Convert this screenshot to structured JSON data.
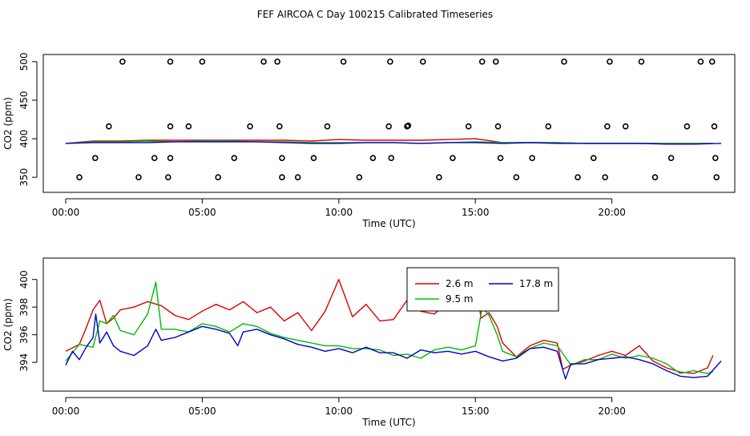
{
  "figure": {
    "title": "FEF AIRCOA C  Day 100215  Calibrated Timeseries"
  },
  "chart_data": [
    {
      "type": "line",
      "xlabel": "Time (UTC)",
      "ylabel": "CO2 (ppm)",
      "xlim": [
        0,
        24
      ],
      "ylim": [
        345,
        503
      ],
      "x_ticks": [
        0,
        5,
        10,
        15,
        20
      ],
      "x_tick_labels": [
        "00:00",
        "05:00",
        "10:00",
        "15:00",
        "20:00"
      ],
      "y_ticks": [
        350,
        400,
        450,
        500
      ],
      "y_tick_labels": [
        "350",
        "400",
        "450",
        "500"
      ],
      "grid": false,
      "legend": "none",
      "series": [
        {
          "color": "#dd0000",
          "x": [
            0,
            1,
            2,
            3,
            4,
            5,
            6,
            7,
            8,
            9,
            10,
            11,
            12,
            13,
            14,
            15,
            16,
            17,
            18,
            19,
            20,
            21,
            22,
            23,
            23.7
          ],
          "values": [
            394,
            397,
            397,
            398,
            398,
            398,
            398,
            398,
            398,
            397,
            399,
            398,
            398,
            398,
            399,
            400,
            395,
            395,
            395,
            394,
            394,
            394,
            394,
            394,
            394
          ]
        },
        {
          "color": "#00bb00",
          "x": [
            0,
            1,
            2,
            3,
            4,
            5,
            6,
            7,
            8,
            9,
            10,
            11,
            12,
            13,
            14,
            15,
            16,
            17,
            18,
            19,
            20,
            21,
            22,
            23,
            23.7
          ],
          "values": [
            394,
            396,
            396,
            397,
            396,
            397,
            397,
            396,
            396,
            395,
            395,
            395,
            395,
            394,
            395,
            396,
            395,
            395,
            395,
            394,
            394,
            394,
            394,
            394,
            394
          ]
        },
        {
          "color": "#0000cc",
          "x": [
            0,
            1,
            2,
            3,
            4,
            5,
            6,
            7,
            8,
            9,
            10,
            11,
            12,
            13,
            14,
            15,
            16,
            17,
            18,
            19,
            20,
            21,
            22,
            23,
            24
          ],
          "values": [
            394,
            395,
            395,
            395,
            396,
            396,
            396,
            396,
            395,
            394,
            394,
            395,
            395,
            394,
            395,
            395,
            394,
            395,
            394,
            394,
            394,
            394,
            393,
            393,
            394
          ]
        }
      ],
      "points": {
        "x": [
          0.5,
          1.08,
          1.58,
          2.08,
          2.67,
          3.25,
          3.75,
          3.83,
          3.83,
          3.83,
          4.5,
          5.0,
          5.58,
          6.17,
          6.75,
          7.25,
          7.75,
          7.83,
          7.92,
          7.92,
          8.5,
          9.08,
          9.58,
          10.17,
          10.75,
          11.25,
          11.83,
          11.88,
          11.92,
          12.5,
          12.54,
          13.08,
          13.67,
          14.17,
          14.75,
          15.25,
          15.75,
          15.83,
          15.92,
          16.5,
          17.08,
          17.67,
          18.25,
          18.75,
          19.33,
          19.75,
          19.83,
          19.92,
          20.5,
          21.08,
          21.58,
          22.17,
          22.75,
          23.25,
          23.67,
          23.75,
          23.79,
          23.83
        ],
        "values": [
          350,
          375,
          416,
          500,
          350,
          375,
          350,
          375,
          416,
          500,
          416,
          500,
          350,
          375,
          416,
          500,
          500,
          416,
          375,
          350,
          350,
          375,
          416,
          500,
          350,
          375,
          416,
          500,
          375,
          416,
          417,
          500,
          350,
          375,
          416,
          500,
          500,
          416,
          375,
          350,
          375,
          416,
          500,
          350,
          375,
          350,
          416,
          500,
          416,
          500,
          350,
          375,
          416,
          500,
          500,
          416,
          375,
          350
        ]
      }
    },
    {
      "type": "line",
      "xlabel": "Time (UTC)",
      "ylabel": "CO2 (ppm)",
      "xlim": [
        0,
        24
      ],
      "ylim": [
        392.5,
        401.2
      ],
      "x_ticks": [
        0,
        5,
        10,
        15,
        20
      ],
      "x_tick_labels": [
        "00:00",
        "05:00",
        "10:00",
        "15:00",
        "20:00"
      ],
      "y_ticks": [
        394,
        396,
        398,
        400
      ],
      "y_tick_labels": [
        "394",
        "396",
        "398",
        "400"
      ],
      "grid": false,
      "legend": "top-center",
      "series": [
        {
          "name": "2.6 m",
          "color": "#dd0000",
          "x": [
            0,
            0.5,
            0.75,
            1,
            1.25,
            1.5,
            1.75,
            2,
            2.5,
            3,
            3.5,
            4,
            4.5,
            5,
            5.5,
            6,
            6.5,
            7,
            7.5,
            8,
            8.5,
            9,
            9.5,
            10,
            10.5,
            11,
            11.5,
            12,
            12.5,
            13,
            13.5,
            14,
            14.3,
            14.6,
            14.8,
            15,
            15.2,
            15.5,
            15.8,
            16,
            16.5,
            17,
            17.5,
            18,
            18.2,
            18.5,
            19,
            19.5,
            20,
            20.5,
            21,
            21.5,
            22,
            22.5,
            23,
            23.5,
            23.7
          ],
          "values": [
            394.8,
            395.3,
            396.5,
            397.8,
            398.5,
            396.8,
            397.2,
            397.8,
            398,
            398.4,
            398.1,
            397.4,
            397.1,
            397.7,
            398.2,
            397.8,
            398.4,
            397.6,
            398,
            397,
            397.6,
            396.3,
            397.7,
            400,
            397.3,
            398.2,
            397,
            397.1,
            398.5,
            397.7,
            397.5,
            398.4,
            399.5,
            400.3,
            399.6,
            400.8,
            397.2,
            397.6,
            396.6,
            395.4,
            394.4,
            395.2,
            395.6,
            395.4,
            393.5,
            393.8,
            394.1,
            394.5,
            394.8,
            394.5,
            395.2,
            394.1,
            393.6,
            393.3,
            393.2,
            393.6,
            394.5
          ]
        },
        {
          "name": "9.5 m",
          "color": "#00bb00",
          "x": [
            0,
            0.5,
            1,
            1.25,
            1.5,
            1.75,
            2,
            2.5,
            3,
            3.3,
            3.5,
            4,
            4.5,
            5,
            5.5,
            6,
            6.5,
            7,
            7.5,
            8,
            8.5,
            9,
            9.5,
            10,
            10.5,
            11,
            11.5,
            12,
            12.5,
            13,
            13.5,
            14,
            14.5,
            15,
            15.25,
            15.5,
            15.8,
            16,
            16.5,
            17,
            17.5,
            18,
            18.5,
            19,
            19.5,
            20,
            20.5,
            21,
            21.5,
            22,
            22.5,
            23,
            23.5,
            23.7
          ],
          "values": [
            394.1,
            395.3,
            395.1,
            397,
            396.8,
            397.4,
            396.3,
            396,
            397.5,
            399.8,
            396.4,
            396.4,
            396.2,
            396.8,
            396.6,
            396.2,
            396.8,
            396.6,
            396.1,
            395.8,
            395.6,
            395.4,
            395.2,
            395.2,
            395,
            395,
            394.9,
            394.5,
            394.6,
            394.3,
            394.9,
            395.1,
            394.9,
            395.2,
            398,
            397.4,
            396,
            394.8,
            394.4,
            395,
            395.4,
            395.2,
            393.8,
            394.2,
            394.2,
            394.6,
            394.3,
            394.5,
            394.3,
            393.9,
            393.2,
            393.4,
            393.2,
            393.3
          ]
        },
        {
          "name": "17.8 m",
          "color": "#0000cc",
          "x": [
            0,
            0.25,
            0.5,
            0.75,
            1,
            1.1,
            1.25,
            1.5,
            1.75,
            2,
            2.5,
            3,
            3.3,
            3.5,
            4,
            4.5,
            5,
            5.5,
            6,
            6.3,
            6.5,
            7,
            7.5,
            8,
            8.5,
            9,
            9.5,
            10,
            10.5,
            11,
            11.5,
            12,
            12.5,
            13,
            13.5,
            14,
            14.5,
            15,
            15.5,
            16,
            16.5,
            17,
            17.5,
            18,
            18.3,
            18.5,
            19,
            19.5,
            20,
            20.5,
            21,
            21.5,
            22,
            22.5,
            23,
            23.5,
            24
          ],
          "values": [
            393.8,
            394.8,
            394.2,
            395.1,
            395.8,
            397.5,
            395.4,
            396.2,
            395.2,
            394.8,
            394.5,
            395.2,
            396.4,
            395.6,
            395.8,
            396.2,
            396.6,
            396.4,
            396.1,
            395.2,
            396.2,
            396.4,
            396,
            395.7,
            395.3,
            395.1,
            394.8,
            395,
            394.7,
            395.1,
            394.7,
            394.7,
            394.3,
            394.9,
            394.7,
            394.8,
            394.6,
            394.8,
            394.4,
            394.1,
            394.3,
            395,
            395.1,
            394.8,
            392.8,
            393.9,
            393.9,
            394.2,
            394.3,
            394.4,
            394.2,
            393.9,
            393.4,
            393,
            392.9,
            393,
            394.1
          ]
        }
      ]
    }
  ]
}
